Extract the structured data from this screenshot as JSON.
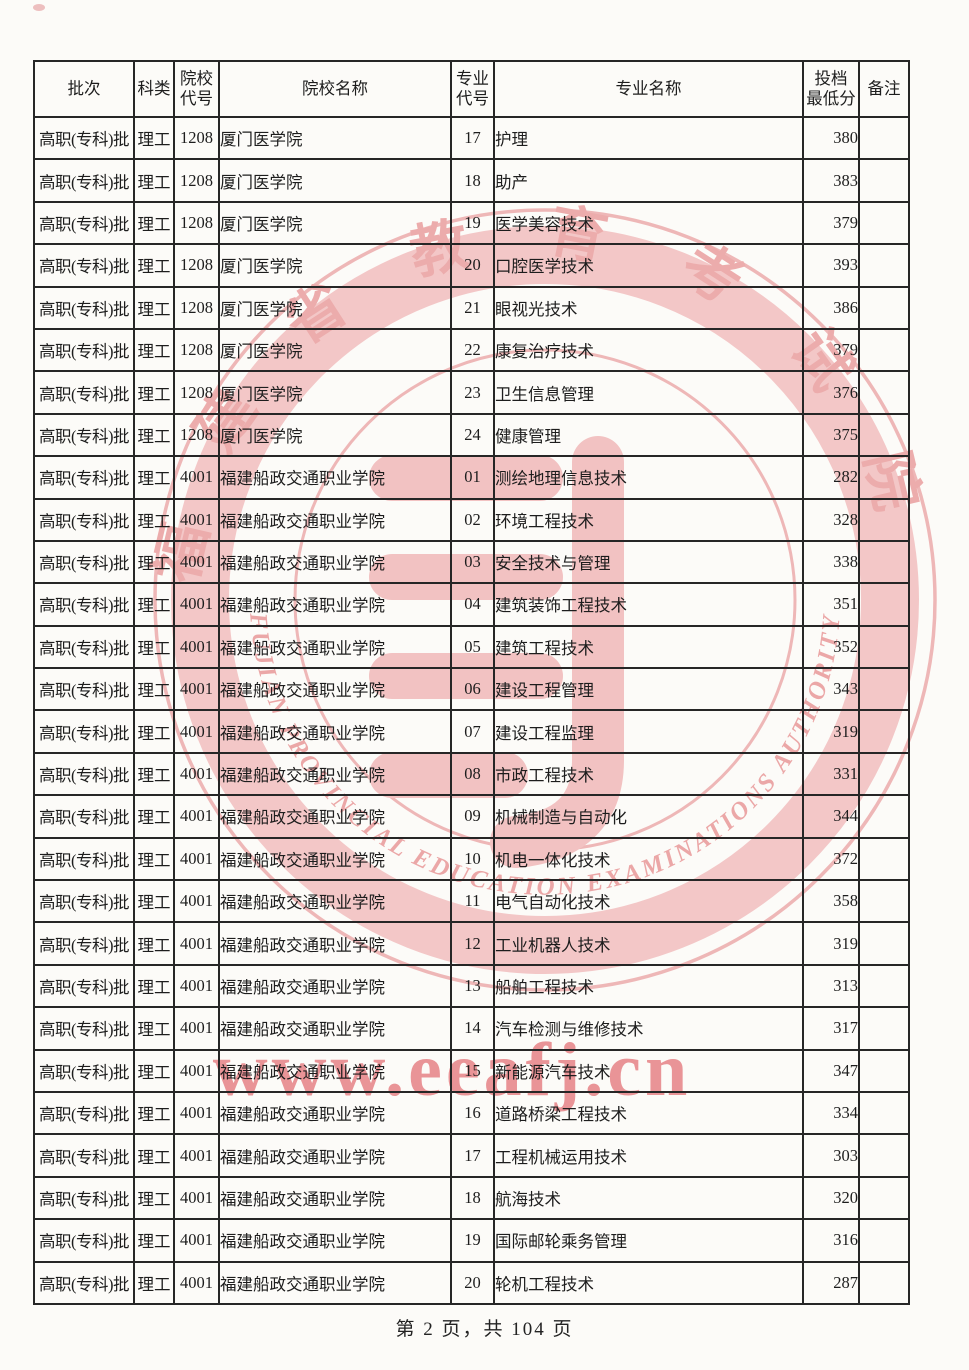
{
  "page": {
    "footer": "第 2 页，共 104 页"
  },
  "watermark": {
    "seal_cn": "福建省教育考试院",
    "seal_en": "FUJIAN PROVINCIAL EDUCATION EXAMINATIONS AUTHORITY",
    "url": "www.eeafj.cn",
    "band_color": "#f3c5c5",
    "text_color": "#eca8a8",
    "url_color": "#e98f92"
  },
  "table": {
    "headers": [
      "批次",
      "科类",
      "院校\n代号",
      "院校名称",
      "专业\n代号",
      "专业名称",
      "投档\n最低分",
      "备注"
    ],
    "rows": [
      [
        "高职(专科)批",
        "理工",
        "1208",
        "厦门医学院",
        "17",
        "护理",
        "380",
        ""
      ],
      [
        "高职(专科)批",
        "理工",
        "1208",
        "厦门医学院",
        "18",
        "助产",
        "383",
        ""
      ],
      [
        "高职(专科)批",
        "理工",
        "1208",
        "厦门医学院",
        "19",
        "医学美容技术",
        "379",
        ""
      ],
      [
        "高职(专科)批",
        "理工",
        "1208",
        "厦门医学院",
        "20",
        "口腔医学技术",
        "393",
        ""
      ],
      [
        "高职(专科)批",
        "理工",
        "1208",
        "厦门医学院",
        "21",
        "眼视光技术",
        "386",
        ""
      ],
      [
        "高职(专科)批",
        "理工",
        "1208",
        "厦门医学院",
        "22",
        "康复治疗技术",
        "379",
        ""
      ],
      [
        "高职(专科)批",
        "理工",
        "1208",
        "厦门医学院",
        "23",
        "卫生信息管理",
        "376",
        ""
      ],
      [
        "高职(专科)批",
        "理工",
        "1208",
        "厦门医学院",
        "24",
        "健康管理",
        "375",
        ""
      ],
      [
        "高职(专科)批",
        "理工",
        "4001",
        "福建船政交通职业学院",
        "01",
        "测绘地理信息技术",
        "282",
        ""
      ],
      [
        "高职(专科)批",
        "理工",
        "4001",
        "福建船政交通职业学院",
        "02",
        "环境工程技术",
        "328",
        ""
      ],
      [
        "高职(专科)批",
        "理工",
        "4001",
        "福建船政交通职业学院",
        "03",
        "安全技术与管理",
        "338",
        ""
      ],
      [
        "高职(专科)批",
        "理工",
        "4001",
        "福建船政交通职业学院",
        "04",
        "建筑装饰工程技术",
        "351",
        ""
      ],
      [
        "高职(专科)批",
        "理工",
        "4001",
        "福建船政交通职业学院",
        "05",
        "建筑工程技术",
        "352",
        ""
      ],
      [
        "高职(专科)批",
        "理工",
        "4001",
        "福建船政交通职业学院",
        "06",
        "建设工程管理",
        "343",
        ""
      ],
      [
        "高职(专科)批",
        "理工",
        "4001",
        "福建船政交通职业学院",
        "07",
        "建设工程监理",
        "319",
        ""
      ],
      [
        "高职(专科)批",
        "理工",
        "4001",
        "福建船政交通职业学院",
        "08",
        "市政工程技术",
        "331",
        ""
      ],
      [
        "高职(专科)批",
        "理工",
        "4001",
        "福建船政交通职业学院",
        "09",
        "机械制造与自动化",
        "344",
        ""
      ],
      [
        "高职(专科)批",
        "理工",
        "4001",
        "福建船政交通职业学院",
        "10",
        "机电一体化技术",
        "372",
        ""
      ],
      [
        "高职(专科)批",
        "理工",
        "4001",
        "福建船政交通职业学院",
        "11",
        "电气自动化技术",
        "358",
        ""
      ],
      [
        "高职(专科)批",
        "理工",
        "4001",
        "福建船政交通职业学院",
        "12",
        "工业机器人技术",
        "319",
        ""
      ],
      [
        "高职(专科)批",
        "理工",
        "4001",
        "福建船政交通职业学院",
        "13",
        "船舶工程技术",
        "313",
        ""
      ],
      [
        "高职(专科)批",
        "理工",
        "4001",
        "福建船政交通职业学院",
        "14",
        "汽车检测与维修技术",
        "317",
        ""
      ],
      [
        "高职(专科)批",
        "理工",
        "4001",
        "福建船政交通职业学院",
        "15",
        "新能源汽车技术",
        "347",
        ""
      ],
      [
        "高职(专科)批",
        "理工",
        "4001",
        "福建船政交通职业学院",
        "16",
        "道路桥梁工程技术",
        "334",
        ""
      ],
      [
        "高职(专科)批",
        "理工",
        "4001",
        "福建船政交通职业学院",
        "17",
        "工程机械运用技术",
        "303",
        ""
      ],
      [
        "高职(专科)批",
        "理工",
        "4001",
        "福建船政交通职业学院",
        "18",
        "航海技术",
        "320",
        ""
      ],
      [
        "高职(专科)批",
        "理工",
        "4001",
        "福建船政交通职业学院",
        "19",
        "国际邮轮乘务管理",
        "316",
        ""
      ],
      [
        "高职(专科)批",
        "理工",
        "4001",
        "福建船政交通职业学院",
        "20",
        "轮机工程技术",
        "287",
        ""
      ]
    ]
  }
}
